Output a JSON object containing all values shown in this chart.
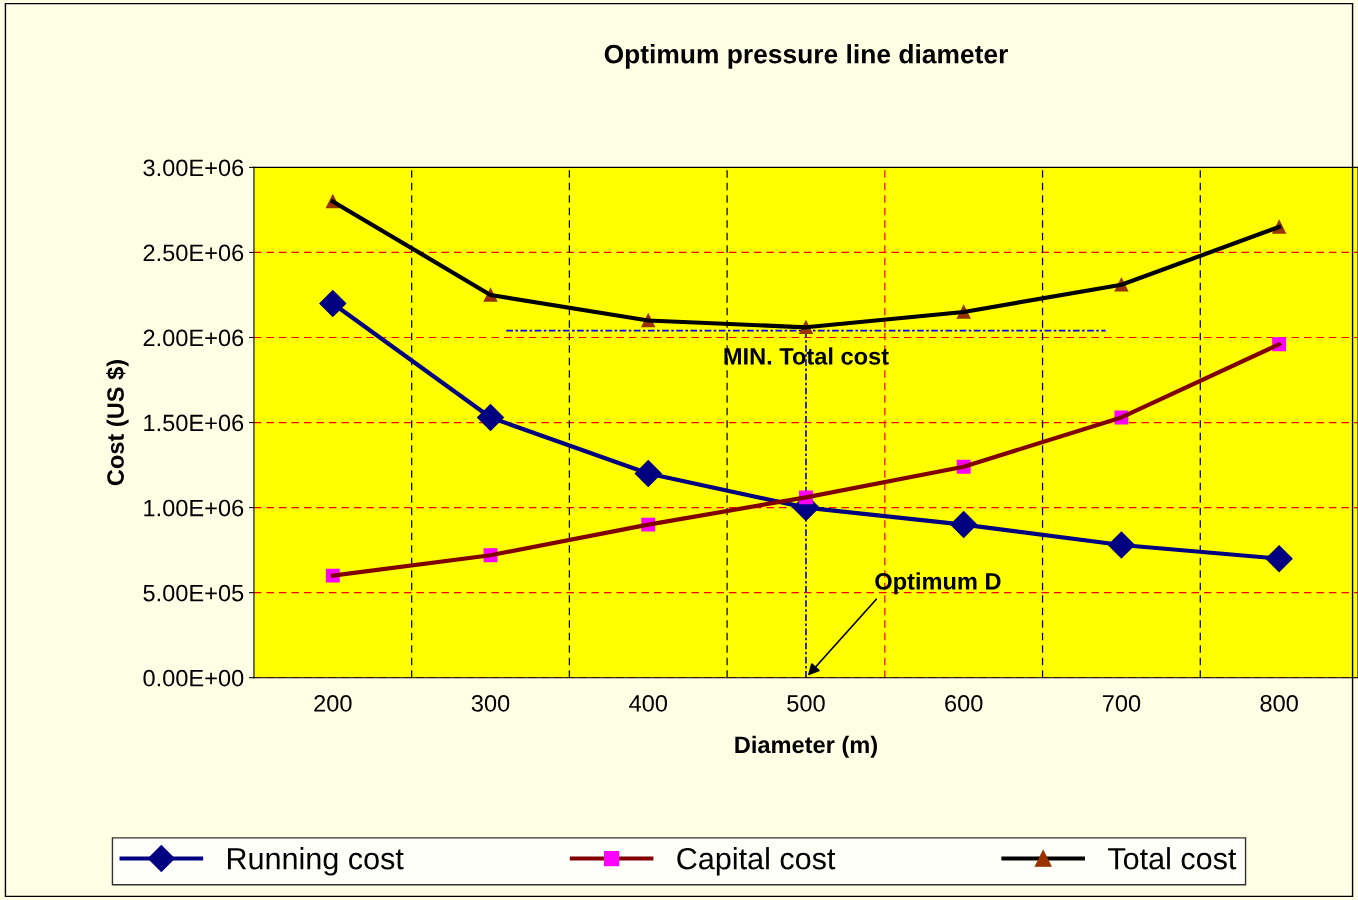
{
  "chart_data": {
    "type": "line",
    "title": "Optimum pressure line diameter",
    "xlabel": "Diameter (m)",
    "ylabel": "Cost (US $)",
    "x": [
      200,
      300,
      400,
      500,
      600,
      700,
      800
    ],
    "xlim": [
      150,
      850
    ],
    "xticks": [
      200,
      300,
      400,
      500,
      600,
      700,
      800
    ],
    "ylim": [
      0,
      3000000
    ],
    "yticks": [
      {
        "value": 0,
        "label": "0.00E+00"
      },
      {
        "value": 500000,
        "label": "5.00E+05"
      },
      {
        "value": 1000000,
        "label": "1.00E+06"
      },
      {
        "value": 1500000,
        "label": "1.50E+06"
      },
      {
        "value": 2000000,
        "label": "2.00E+06"
      },
      {
        "value": 2500000,
        "label": "2.50E+06"
      },
      {
        "value": 3000000,
        "label": "3.00E+06"
      }
    ],
    "grid": "y",
    "legend": "bottom",
    "series": [
      {
        "name": "Running cost",
        "color": "#000080",
        "marker": "diamond",
        "values": [
          2200000,
          1530000,
          1200000,
          1000000,
          900000,
          780000,
          700000
        ]
      },
      {
        "name": "Capital cost",
        "color": "#800000",
        "colors": [
          "#ff00ff",
          "#ff00ff",
          "#ff00ff",
          "#ff00ff",
          "#ff00ff",
          "#ff00ff",
          "#ff00ff"
        ],
        "marker": "square",
        "values": [
          600000,
          720000,
          900000,
          1060000,
          1240000,
          1530000,
          1960000
        ]
      },
      {
        "name": "Total cost",
        "color": "#000000",
        "colors": [
          "#993300",
          "#993300",
          "#993300",
          "#993300",
          "#993300",
          "#993300",
          "#993300"
        ],
        "marker": "triangle",
        "values": [
          2800000,
          2250000,
          2100000,
          2060000,
          2150000,
          2310000,
          2650000
        ]
      },
      {
        "type": "line",
        "color": "#0000ff",
        "line_style": "dashed",
        "marker": "none",
        "x": [
          310,
          690
        ],
        "values": [
          2040000,
          2040000
        ]
      },
      {
        "type": "line",
        "color": "#0000ff",
        "line_style": "dashed",
        "marker": "none",
        "x": [
          500,
          500
        ],
        "values": [
          0,
          2040000
        ]
      }
    ],
    "ref_lines": [
      {
        "axis": "x",
        "value": 250,
        "color": "#000000",
        "line_style": "dashed"
      },
      {
        "axis": "x",
        "value": 350,
        "color": "#000000",
        "line_style": "dashed"
      },
      {
        "axis": "x",
        "value": 450,
        "color": "#000000",
        "line_style": "dashed"
      },
      {
        "axis": "x",
        "value": 550,
        "color": "#ff0000",
        "line_style": "dashed"
      },
      {
        "axis": "x",
        "value": 650,
        "color": "#000000",
        "line_style": "dashed"
      },
      {
        "axis": "x",
        "value": 750,
        "color": "#000000",
        "line_style": "dashed"
      }
    ],
    "annotations": [
      {
        "text": "MIN. Total cost",
        "x": 500,
        "y": 2040000
      },
      {
        "text": "Optimum D",
        "x": 500,
        "y": 0
      }
    ]
  }
}
